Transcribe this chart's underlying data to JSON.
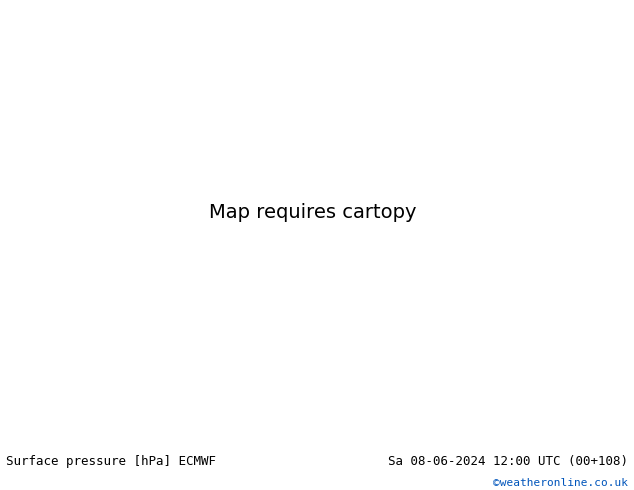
{
  "title_left": "Surface pressure [hPa] ECMWF",
  "title_right": "Sa 08-06-2024 12:00 UTC (00+108)",
  "copyright": "©weatheronline.co.uk",
  "ocean_color": "#d8d8d8",
  "land_color": "#c8e8a0",
  "mountain_color": "#b0b0b0",
  "text_color_black": "#000000",
  "text_color_blue": "#0000cc",
  "text_color_red": "#cc0000",
  "copyright_color": "#0055bb",
  "bottom_bg": "#ffffff",
  "font_size_title": 9,
  "font_size_copyright": 8,
  "extent": [
    -28,
    45,
    27,
    72
  ],
  "figsize": [
    6.34,
    4.9
  ],
  "dpi": 100
}
